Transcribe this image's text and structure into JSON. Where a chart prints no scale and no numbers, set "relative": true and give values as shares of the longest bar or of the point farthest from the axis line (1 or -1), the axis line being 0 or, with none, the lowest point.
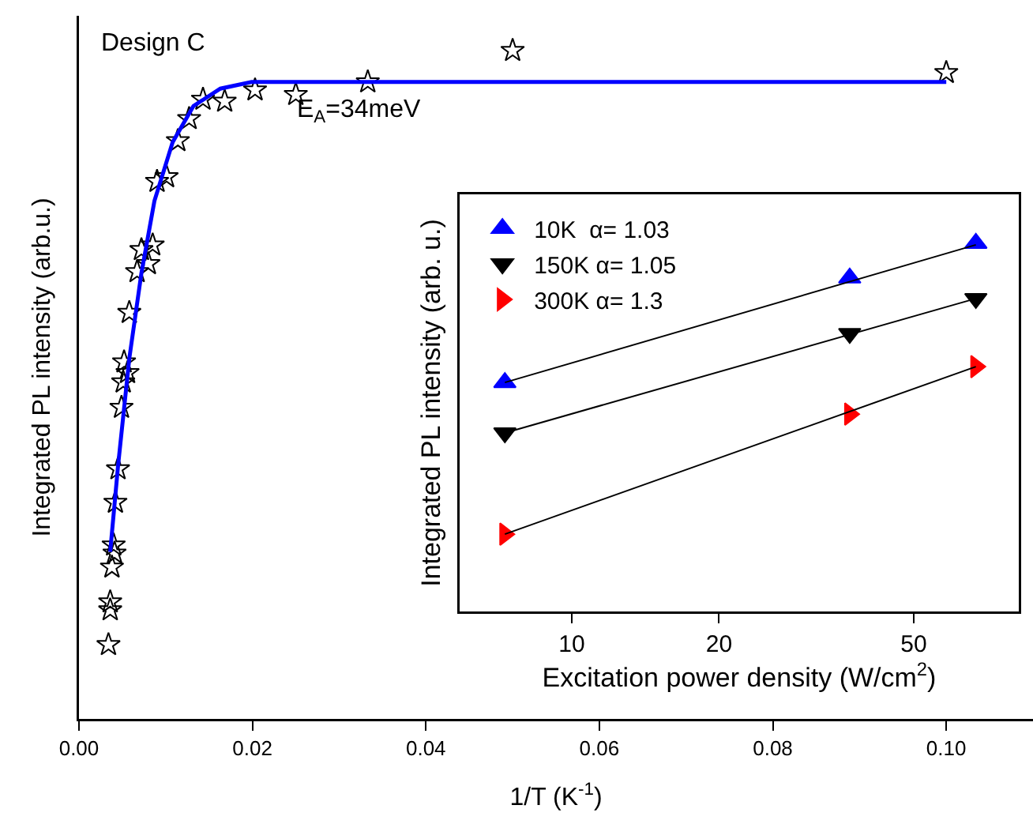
{
  "chart_data": [
    {
      "type": "scatter",
      "relative": true,
      "xlabel": "1/T (K$^{-1}$)",
      "ylabel": "Integrated PL intensity (arb.u.)",
      "xlim": [
        0,
        0.11
      ],
      "xticks": [
        {
          "value": 0,
          "label": "0.00"
        },
        {
          "value": 0.02,
          "label": "0.02"
        },
        {
          "value": 0.04,
          "label": "0.04"
        },
        {
          "value": 0.06,
          "label": "0.06"
        },
        {
          "value": 0.08,
          "label": "0.08"
        },
        {
          "value": 0.1,
          "label": "0.10"
        }
      ],
      "annotations": [
        "Design C",
        "E$_{A}$=34meV"
      ],
      "grid": false,
      "legend": false,
      "tick_labels": "x",
      "series": [
        {
          "type": "scatter",
          "marker": "star",
          "color": "#000000",
          "x": [
            0.05,
            0.1,
            0.0333,
            0.025,
            0.0203,
            0.0168,
            0.0143,
            0.0127,
            0.0114,
            0.0101,
            0.009,
            0.0085,
            0.0072,
            0.008,
            0.0067,
            0.0058,
            0.0052,
            0.0056,
            0.0051,
            0.0049,
            0.0045,
            0.0042,
            0.004,
            0.0041,
            0.0038,
            0.0036,
            0.0036,
            0.0034
          ],
          "values": [
            1.0,
            0.967,
            0.953,
            0.934,
            0.941,
            0.924,
            0.927,
            0.898,
            0.865,
            0.811,
            0.804,
            0.709,
            0.702,
            0.681,
            0.669,
            0.608,
            0.534,
            0.518,
            0.504,
            0.466,
            0.374,
            0.324,
            0.26,
            0.248,
            0.227,
            0.175,
            0.163,
            0.111
          ]
        },
        {
          "type": "line",
          "marker": "none",
          "line_style": "solid",
          "color": "#0000ff",
          "x": [
            0.0036,
            0.0045,
            0.0058,
            0.0072,
            0.0087,
            0.0108,
            0.0132,
            0.0163,
            0.0199,
            0.03,
            0.1
          ],
          "values": [
            0.25,
            0.378,
            0.539,
            0.667,
            0.775,
            0.863,
            0.917,
            0.943,
            0.953,
            0.953,
            0.953
          ]
        }
      ]
    },
    {
      "type": "scatter",
      "relative": true,
      "log": "x",
      "xlabel": "Excitation power density (W/cm$^{2}$)",
      "ylabel": "Integrated PL intensity (arb. u.)",
      "xlim": [
        5.9,
        82
      ],
      "xticks": [
        10,
        20,
        50
      ],
      "grid": false,
      "legend": "top left",
      "tick_labels": "x",
      "series": [
        {
          "type": "scatter",
          "name": "10K  α= 1.03",
          "marker": "triangle",
          "color": "#0000ff",
          "x": [
            7.3,
            37,
            67
          ],
          "values": [
            0.622,
            0.906,
            1.0
          ]
        },
        {
          "type": "scatter",
          "name": "150K α= 1.05",
          "marker": "triangle",
          "color": "#000000",
          "x": [
            7.3,
            37,
            67
          ],
          "values": [
            0.485,
            0.755,
            0.85
          ]
        },
        {
          "type": "scatter",
          "name": "300K α= 1.3",
          "marker": "triangle",
          "color": "#ff0000",
          "x": [
            7.3,
            37,
            67
          ],
          "values": [
            0.21,
            0.536,
            0.665
          ]
        },
        {
          "type": "line",
          "marker": "none",
          "line_style": "solid",
          "color": "#000000",
          "x": [
            7.3,
            67
          ],
          "values": [
            0.622,
            0.996
          ]
        },
        {
          "type": "line",
          "marker": "none",
          "line_style": "solid",
          "color": "#000000",
          "x": [
            7.3,
            67
          ],
          "values": [
            0.485,
            0.85
          ]
        },
        {
          "type": "line",
          "marker": "none",
          "line_style": "solid",
          "color": "#000000",
          "x": [
            7.3,
            67
          ],
          "values": [
            0.21,
            0.665
          ]
        }
      ]
    }
  ]
}
